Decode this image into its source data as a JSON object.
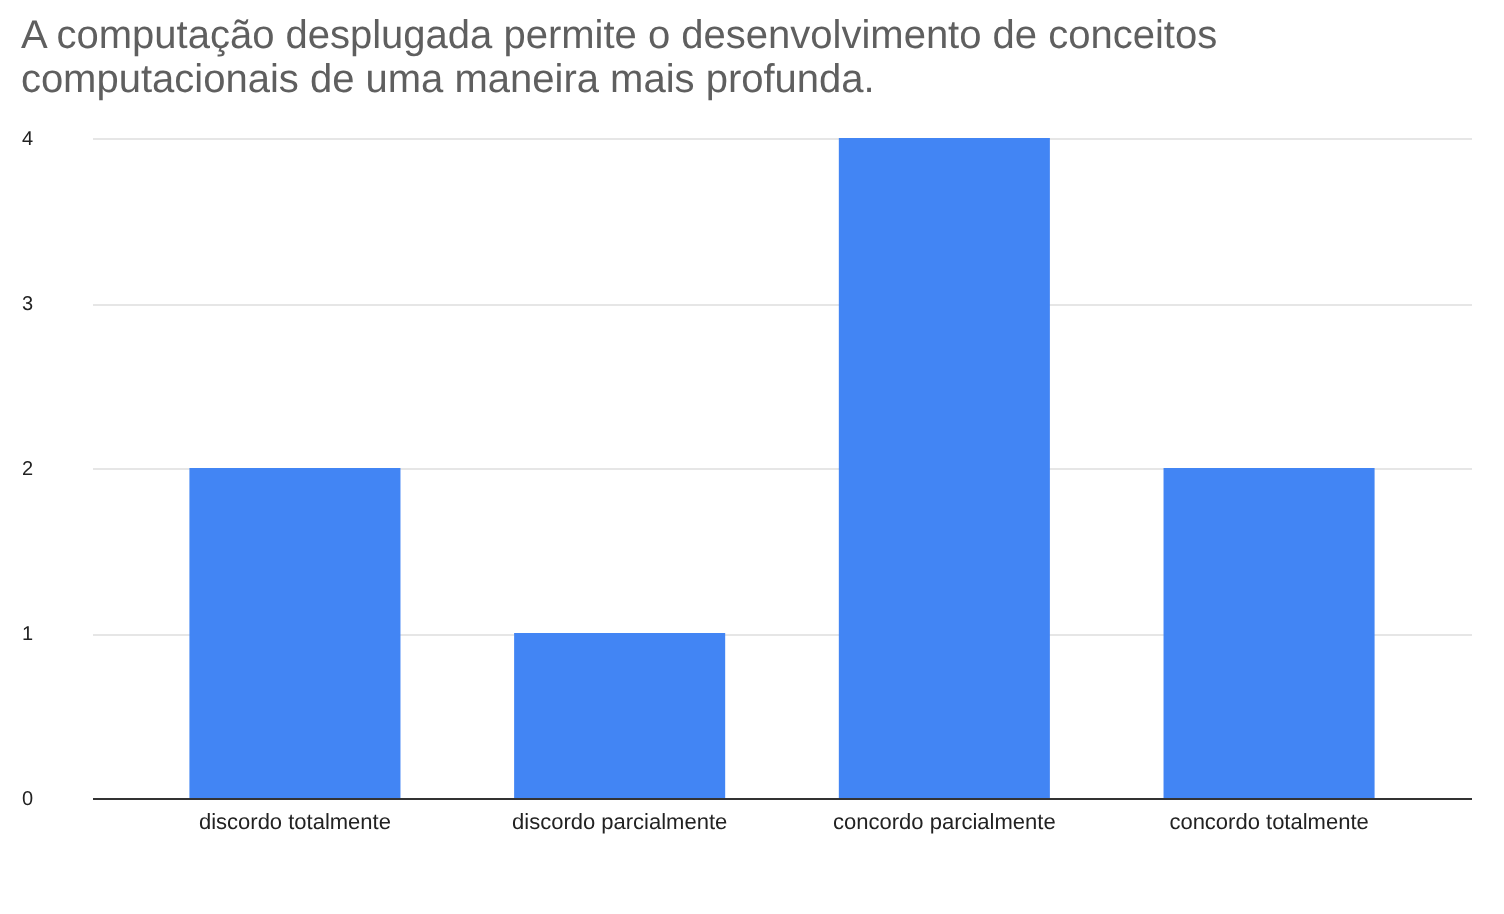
{
  "chart_data": {
    "type": "bar",
    "title": "A computação desplugada permite o desenvolvimento de conceitos computacionais de uma maneira mais profunda.",
    "categories": [
      "discordo totalmente",
      "discordo parcialmente",
      "concordo parcialmente",
      "concordo totalmente"
    ],
    "values": [
      2,
      1,
      4,
      2
    ],
    "color": "#4285f4",
    "ylim": [
      0,
      4
    ],
    "yticks": [
      0,
      1,
      2,
      3,
      4
    ],
    "grid": "y"
  }
}
